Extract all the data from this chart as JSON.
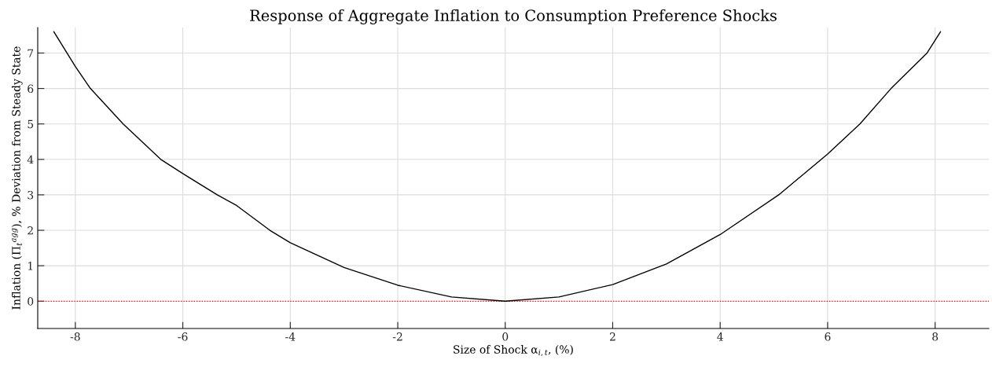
{
  "chart_data": {
    "type": "line",
    "title": "Response of Aggregate Inflation to Consumption Preference Shocks",
    "xlabel": "Size of Shock α$_{i,t}$, (%)",
    "ylabel": "Inflation (Π$_{t}$$^{agg}$), % Deviation from Steady State",
    "series": [
      {
        "color": "#000000",
        "x": [
          -8.4,
          -8,
          -7.72,
          -7.11,
          -6.41,
          -6,
          -5.36,
          -5,
          -4.38,
          -4,
          -3,
          -2,
          -1,
          0,
          1,
          2,
          3,
          4,
          5.09,
          6,
          6.6,
          7.18,
          7.85,
          8.1
        ],
        "values": [
          7.6,
          6.62,
          6,
          5,
          4,
          3.6,
          3,
          2.7,
          2,
          1.65,
          0.95,
          0.45,
          0.12,
          0,
          0.12,
          0.47,
          1.05,
          1.88,
          3,
          4.15,
          5,
          6,
          7,
          7.6
        ]
      }
    ],
    "xlim": [
      -8.7,
      9.0
    ],
    "ylim": [
      -0.77,
      7.72
    ],
    "xticks": [
      -8,
      -6,
      -4,
      -2,
      0,
      2,
      4,
      6,
      8
    ],
    "yticks": [
      0,
      1,
      2,
      3,
      4,
      5,
      6,
      7
    ],
    "ref_lines": [
      {
        "axis": "y",
        "value": 0,
        "color": "#ff0000",
        "line_style": "dotted"
      }
    ],
    "grid": true,
    "marker": "none",
    "line_style": "solid"
  }
}
